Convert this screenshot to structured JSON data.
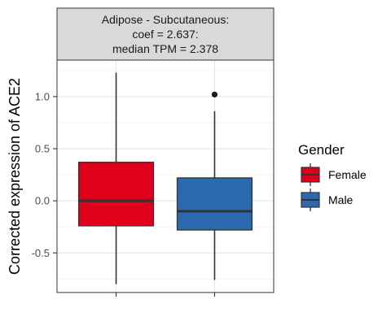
{
  "chart_data": {
    "type": "boxplot",
    "facet_title_lines": [
      "Adipose - Subcutaneous:",
      "coef = 2.637:",
      "median TPM = 2.378"
    ],
    "xlabel": "",
    "ylabel": "Corrected expression of ACE2",
    "ylim": [
      -0.88,
      1.35
    ],
    "yticks": [
      -0.5,
      0.0,
      0.5,
      1.0
    ],
    "ytick_labels": [
      "-0.5",
      "0.0",
      "0.5",
      "1.0"
    ],
    "grid": true,
    "legend": {
      "title": "Gender",
      "placement": "right"
    },
    "series": [
      {
        "name": "Female",
        "color": "#e0001b",
        "whisker_low": -0.8,
        "q1": -0.24,
        "median": 0.0,
        "q3": 0.37,
        "whisker_high": 1.23,
        "outliers": []
      },
      {
        "name": "Male",
        "color": "#2b6aae",
        "whisker_low": -0.76,
        "q1": -0.28,
        "median": -0.1,
        "q3": 0.22,
        "whisker_high": 0.86,
        "outliers": [
          1.02
        ]
      }
    ]
  }
}
